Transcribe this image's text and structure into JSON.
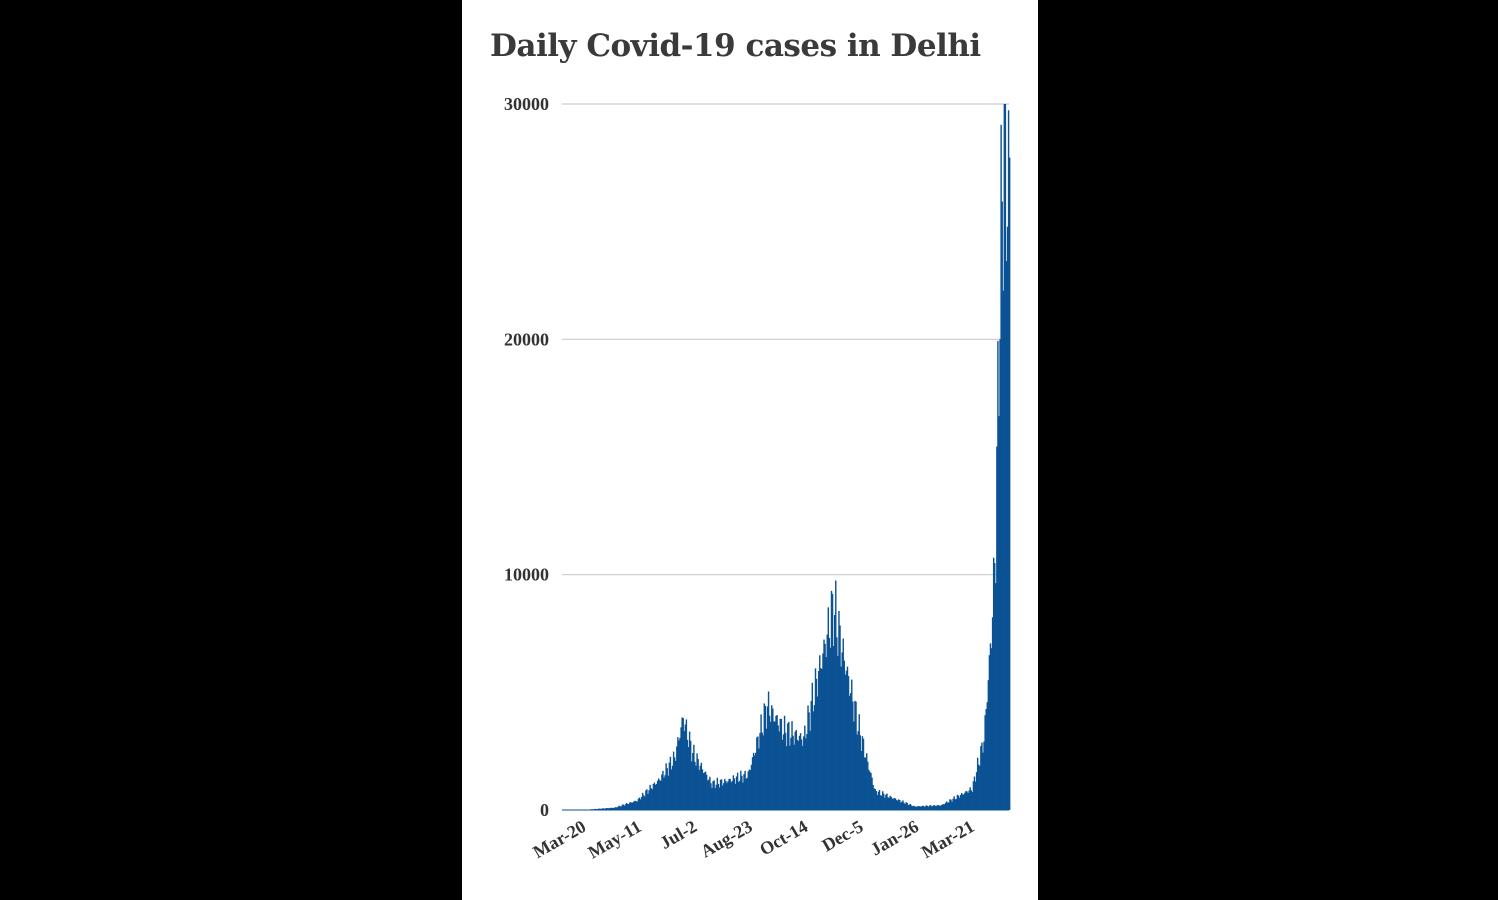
{
  "chart_data": {
    "type": "bar",
    "title": "Daily Covid-19 cases in Delhi",
    "xlabel": "",
    "ylabel": "",
    "ylim": [
      0,
      30000
    ],
    "yticks": [
      "0",
      "10000",
      "20000",
      "30000"
    ],
    "yticks_values": [
      0,
      10000,
      20000,
      30000
    ],
    "xtick_labels": [
      "Mar-20",
      "May-11",
      "Jul-2",
      "Aug-23",
      "Oct-14",
      "Dec-5",
      "Jan-26",
      "Mar-21"
    ],
    "start_date": "2020-03-02",
    "end_date": "2021-04-25",
    "grid": "horizontal",
    "legend": "none",
    "bar_color": "#0b5294",
    "grid_color": "#c9ccd6",
    "key_values": [
      {
        "date": "2020-03-20",
        "cases": 0
      },
      {
        "date": "2020-04-20",
        "cases": 100
      },
      {
        "date": "2020-05-11",
        "cases": 400
      },
      {
        "date": "2020-06-01",
        "cases": 1300
      },
      {
        "date": "2020-06-15",
        "cases": 2200
      },
      {
        "date": "2020-06-23",
        "cases": 3900
      },
      {
        "date": "2020-07-02",
        "cases": 2400
      },
      {
        "date": "2020-07-20",
        "cases": 1100
      },
      {
        "date": "2020-08-01",
        "cases": 1200
      },
      {
        "date": "2020-08-23",
        "cases": 1500
      },
      {
        "date": "2020-09-10",
        "cases": 4400
      },
      {
        "date": "2020-09-25",
        "cases": 3400
      },
      {
        "date": "2020-10-14",
        "cases": 3000
      },
      {
        "date": "2020-10-28",
        "cases": 5800
      },
      {
        "date": "2020-11-11",
        "cases": 8600
      },
      {
        "date": "2020-11-20",
        "cases": 6600
      },
      {
        "date": "2020-12-05",
        "cases": 3400
      },
      {
        "date": "2020-12-20",
        "cases": 800
      },
      {
        "date": "2021-01-26",
        "cases": 150
      },
      {
        "date": "2021-02-20",
        "cases": 200
      },
      {
        "date": "2021-03-21",
        "cases": 900
      },
      {
        "date": "2021-04-01",
        "cases": 3000
      },
      {
        "date": "2021-04-08",
        "cases": 7500
      },
      {
        "date": "2021-04-12",
        "cases": 11500
      },
      {
        "date": "2021-04-14",
        "cases": 17300
      },
      {
        "date": "2021-04-17",
        "cases": 24400
      },
      {
        "date": "2021-04-20",
        "cases": 28400
      },
      {
        "date": "2021-04-22",
        "cases": 26200
      },
      {
        "date": "2021-04-24",
        "cases": 27000
      }
    ]
  }
}
